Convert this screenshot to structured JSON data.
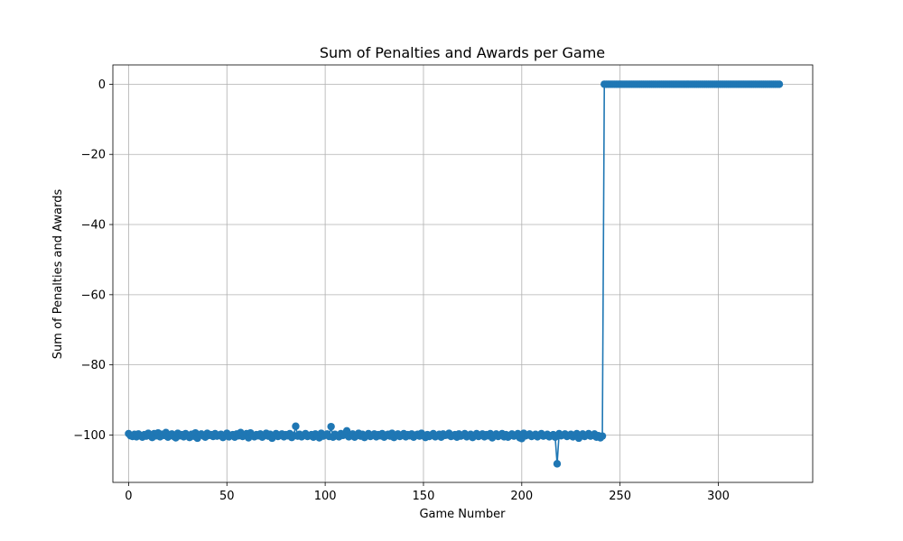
{
  "chart_data": {
    "type": "line",
    "title": "Sum of Penalties and Awards per Game",
    "xlabel": "Game Number",
    "ylabel": "Sum of Penalties and Awards",
    "xlim": [
      -8,
      348
    ],
    "ylim": [
      -113.5,
      5.5
    ],
    "xticks": [
      0,
      50,
      100,
      150,
      200,
      250,
      300
    ],
    "yticks": [
      0,
      -20,
      -40,
      -60,
      -80,
      -100
    ],
    "xtick_labels": [
      "0",
      "50",
      "100",
      "150",
      "200",
      "250",
      "300"
    ],
    "ytick_labels": [
      "0",
      "−20",
      "−40",
      "−60",
      "−80",
      "−100"
    ],
    "grid": true,
    "legend": "none",
    "color": "#1f77b4",
    "marker": "circle",
    "series": [
      {
        "x_start": 0,
        "values": [
          -99.6,
          -100.2,
          -100.4,
          -99.8,
          -100.5,
          -99.7,
          -100.1,
          -100.6,
          -99.9,
          -100.3,
          -99.5,
          -100.0,
          -100.7,
          -99.6,
          -100.2,
          -99.4,
          -100.5,
          -99.8,
          -100.1,
          -99.3,
          -100.6,
          -100.0,
          -99.7,
          -100.4,
          -100.8,
          -99.5,
          -100.2,
          -99.9,
          -100.5,
          -99.6,
          -100.1,
          -100.7,
          -99.8,
          -100.3,
          -99.4,
          -100.9,
          -100.0,
          -99.7,
          -100.2,
          -100.6,
          -99.5,
          -100.1,
          -99.9,
          -100.4,
          -99.6,
          -100.3,
          -100.0,
          -99.8,
          -100.7,
          -100.2,
          -99.5,
          -100.5,
          -100.1,
          -99.9,
          -100.6,
          -99.7,
          -100.2,
          -99.3,
          -100.4,
          -100.0,
          -99.6,
          -100.8,
          -99.4,
          -100.1,
          -100.5,
          -99.9,
          -100.2,
          -99.7,
          -100.6,
          -100.0,
          -99.5,
          -100.3,
          -99.8,
          -100.9,
          -100.1,
          -99.6,
          -100.4,
          -100.0,
          -99.7,
          -100.5,
          -99.9,
          -100.2,
          -99.6,
          -100.7,
          -100.1,
          -97.5,
          -100.3,
          -99.8,
          -100.5,
          -100.0,
          -99.6,
          -100.4,
          -100.2,
          -99.9,
          -100.6,
          -99.7,
          -100.1,
          -100.8,
          -99.5,
          -100.3,
          -100.0,
          -99.7,
          -100.4,
          -97.6,
          -100.6,
          -99.8,
          -100.2,
          -100.5,
          -99.6,
          -100.1,
          -99.9,
          -98.8,
          -100.5,
          -100.2,
          -99.7,
          -100.6,
          -100.0,
          -99.5,
          -100.3,
          -99.8,
          -100.7,
          -100.1,
          -99.6,
          -100.4,
          -100.0,
          -99.7,
          -100.5,
          -99.9,
          -100.2,
          -99.6,
          -100.6,
          -100.0,
          -99.8,
          -100.3,
          -99.5,
          -100.7,
          -100.1,
          -99.7,
          -100.4,
          -100.0,
          -99.6,
          -100.5,
          -99.9,
          -100.2,
          -99.7,
          -100.6,
          -100.0,
          -99.8,
          -100.3,
          -99.5,
          -100.1,
          -100.7,
          -99.9,
          -100.4,
          -100.0,
          -99.6,
          -100.5,
          -100.2,
          -99.8,
          -100.6,
          -99.7,
          -100.1,
          -100.0,
          -99.5,
          -100.4,
          -100.2,
          -99.9,
          -100.6,
          -99.7,
          -100.3,
          -100.0,
          -99.6,
          -100.5,
          -100.1,
          -99.8,
          -100.7,
          -100.2,
          -99.6,
          -100.4,
          -100.0,
          -99.7,
          -100.5,
          -99.9,
          -100.2,
          -99.6,
          -100.8,
          -100.1,
          -99.7,
          -100.4,
          -100.0,
          -99.6,
          -100.5,
          -99.9,
          -100.6,
          -100.1,
          -99.7,
          -100.3,
          -100.0,
          -99.6,
          -100.8,
          -101.0,
          -99.5,
          -100.2,
          -100.0,
          -99.7,
          -100.4,
          -100.1,
          -99.8,
          -100.5,
          -100.0,
          -99.6,
          -100.3,
          -100.1,
          -99.8,
          -100.5,
          -100.2,
          -99.9,
          -100.6,
          -108.2,
          -99.6,
          -100.2,
          -100.0,
          -99.7,
          -100.4,
          -100.1,
          -99.8,
          -100.5,
          -100.0,
          -99.6,
          -100.9,
          -100.2,
          -99.7,
          -100.4,
          -100.0,
          -99.6,
          -100.3,
          -100.1,
          -99.7,
          -100.6,
          -100.2,
          -100.8,
          -100.3,
          0,
          0,
          0,
          0,
          0,
          0,
          0,
          0,
          0,
          0,
          0,
          0,
          0,
          0,
          0,
          0,
          0,
          0,
          0,
          0,
          0,
          0,
          0,
          0,
          0,
          0,
          0,
          0,
          0,
          0,
          0,
          0,
          0,
          0,
          0,
          0,
          0,
          0,
          0,
          0,
          0,
          0,
          0,
          0,
          0,
          0,
          0,
          0,
          0,
          0,
          0,
          0,
          0,
          0,
          0,
          0,
          0,
          0,
          0,
          0,
          0,
          0,
          0,
          0,
          0,
          0,
          0,
          0,
          0,
          0,
          0,
          0,
          0,
          0,
          0,
          0,
          0,
          0,
          0,
          0,
          0,
          0,
          0,
          0,
          0,
          0,
          0,
          0,
          0,
          0
        ]
      }
    ]
  }
}
